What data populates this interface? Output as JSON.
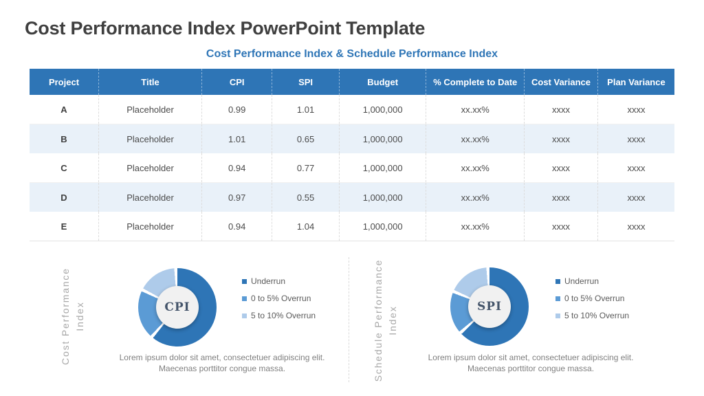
{
  "page": {
    "title": "Cost Performance Index PowerPoint Template",
    "subtitle": "Cost Performance Index & Schedule Performance Index"
  },
  "colors": {
    "header_bg": "#2E75B6",
    "band_bg": "#E9F1F9",
    "accent_blue": "#2E75B6",
    "medium_blue": "#5B9BD5",
    "light_blue": "#AECBEA"
  },
  "table": {
    "headers": [
      "Project",
      "Title",
      "CPI",
      "SPI",
      "Budget",
      "% Complete to Date",
      "Cost Variance",
      "Plan Variance"
    ],
    "rows": [
      [
        "A",
        "Placeholder",
        "0.99",
        "1.01",
        "1,000,000",
        "xx.xx%",
        "xxxx",
        "xxxx"
      ],
      [
        "B",
        "Placeholder",
        "1.01",
        "0.65",
        "1,000,000",
        "xx.xx%",
        "xxxx",
        "xxxx"
      ],
      [
        "C",
        "Placeholder",
        "0.94",
        "0.77",
        "1,000,000",
        "xx.xx%",
        "xxxx",
        "xxxx"
      ],
      [
        "D",
        "Placeholder",
        "0.97",
        "0.55",
        "1,000,000",
        "xx.xx%",
        "xxxx",
        "xxxx"
      ],
      [
        "E",
        "Placeholder",
        "0.94",
        "1.04",
        "1,000,000",
        "xx.xx%",
        "xxxx",
        "xxxx"
      ]
    ]
  },
  "chart_data": [
    {
      "type": "pie",
      "subtype": "donut",
      "center_label": "CPI",
      "side_label": [
        "Cost Performance",
        "Index"
      ],
      "segments": [
        {
          "name": "Underrun",
          "value": 62,
          "color": "#2E75B6"
        },
        {
          "name": "0 to 5% Overrun",
          "value": 21,
          "color": "#5B9BD5"
        },
        {
          "name": "5 to 10% Overrun",
          "value": 17,
          "color": "#AECBEA"
        }
      ],
      "legend_position": "right",
      "caption": "Lorem ipsum dolor sit amet, consectetuer adipiscing elit. Maecenas porttitor  congue massa."
    },
    {
      "type": "pie",
      "subtype": "donut",
      "center_label": "SPI",
      "side_label": [
        "Schedule Performance",
        "Index"
      ],
      "segments": [
        {
          "name": "Underrun",
          "value": 64,
          "color": "#2E75B6"
        },
        {
          "name": "0 to 5% Overrun",
          "value": 18,
          "color": "#5B9BD5"
        },
        {
          "name": "5 to 10% Overrun",
          "value": 18,
          "color": "#AECBEA"
        }
      ],
      "legend_position": "right",
      "caption": "Lorem ipsum dolor sit amet, consectetuer adipiscing elit. Maecenas porttitor  congue massa."
    }
  ]
}
